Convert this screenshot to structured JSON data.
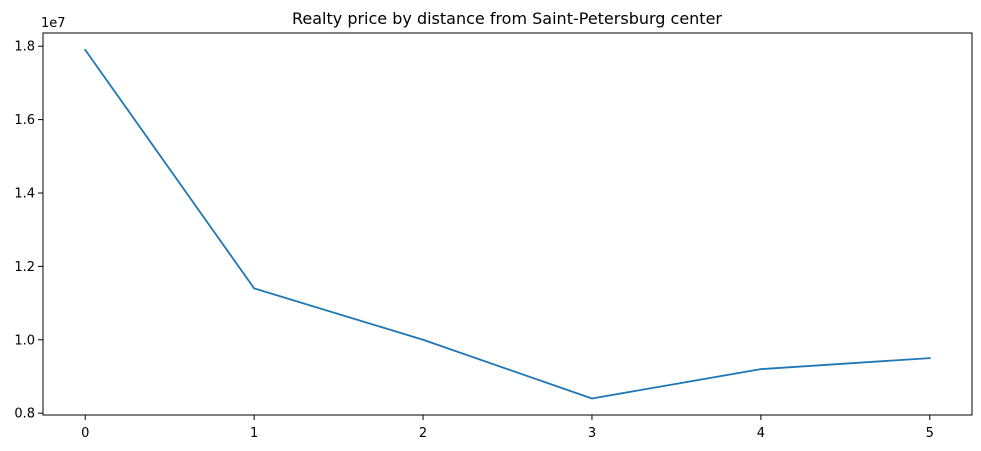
{
  "chart_data": {
    "type": "line",
    "title": "Realty price by distance from Saint-Petersburg center",
    "xlabel": "",
    "ylabel": "",
    "x": [
      0,
      1,
      2,
      3,
      4,
      5
    ],
    "series": [
      {
        "values": [
          17900000,
          11400000,
          10000000,
          8400000,
          9200000,
          9500000
        ],
        "color": "#1f77b4"
      }
    ],
    "x_ticks": [
      "0",
      "1",
      "2",
      "3",
      "4",
      "5"
    ],
    "y_ticks": [
      0.8,
      1.0,
      1.2,
      1.4,
      1.6,
      1.8
    ],
    "y_tick_labels": [
      "0.8",
      "1.0",
      "1.2",
      "1.4",
      "1.6",
      "1.8"
    ],
    "y_offset_label": "1e7",
    "xlim": [
      -0.25,
      5.25
    ],
    "ylim": [
      7950000,
      18360000
    ],
    "grid": false,
    "legend": "none"
  }
}
